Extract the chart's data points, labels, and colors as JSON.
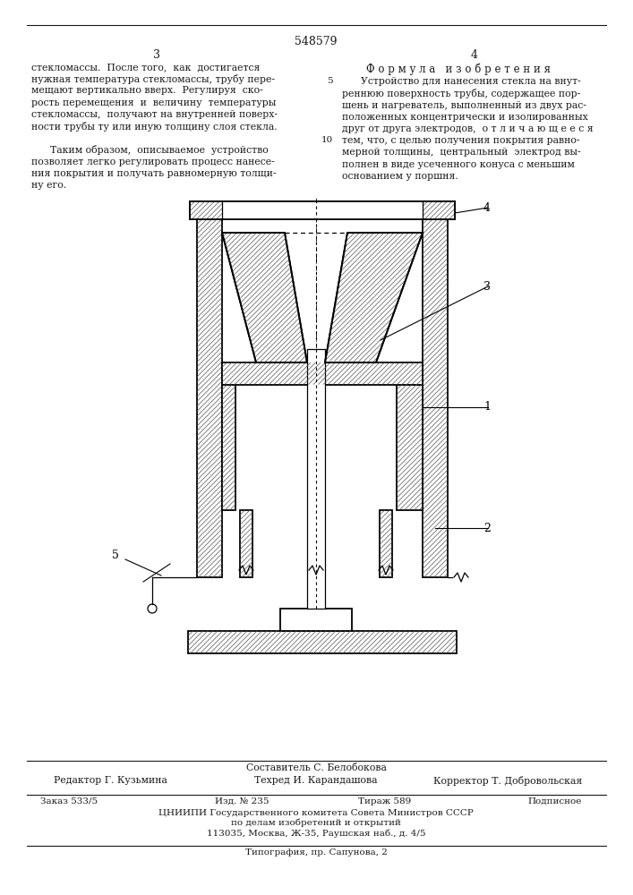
{
  "patent_number": "548579",
  "page_left": "3",
  "page_right": "4",
  "text_left": [
    "стекломассы.  После того,  как  достигается",
    "нужная температура стекломассы, трубу пере-",
    "мещают вертикально вверх.  Регулируя  ско-",
    "рость перемещения  и  величину  температуры",
    "стекломассы,  получают на внутренней поверх-",
    "ности трубы ту или иную толщину слоя стекла.",
    "",
    "      Таким образом,  описываемое  устройство",
    "позволяет легко регулировать процесс нанесе-",
    "ния покрытия и получать равномерную толщи-",
    "ну его."
  ],
  "formula_title": "Ф о р м у л а   и з о б р е т е н и я",
  "text_right": [
    "      Устройство для нанесения стекла на внут-",
    "реннюю поверхность трубы, содержащее пор-",
    "шень и нагреватель, выполненный из двух рас-",
    "положенных концентрически и изолированных",
    "друг от друга электродов,  о т л и ч а ю щ е е с я",
    "тем, что, с целью получения покрытия равно-",
    "мерной толщины,  центральный  электрод вы-",
    "полнен в виде усеченного конуса с меньшим",
    "основанием у поршня."
  ],
  "composer": "Составитель С. Белобокова",
  "editor": "Редактор Г. Кузьмина",
  "techred": "Техред И. Карандашова",
  "corrector": "Корректор Т. Добровольская",
  "order": "Заказ 533/5",
  "pub": "Изд. № 235",
  "tirazh": "Тираж 589",
  "podpisnoe": "Подписное",
  "org_line1": "ЦНИИПИ Государственного комитета Совета Министров СССР",
  "org_line2": "по делам изобретений и открытий",
  "org_line3": "113035, Москва, Ж-35, Раушская наб., д. 4/5",
  "typography": "Типография, пр. Сапунова, 2",
  "bg_color": "#ffffff",
  "text_color": "#1a1a1a"
}
